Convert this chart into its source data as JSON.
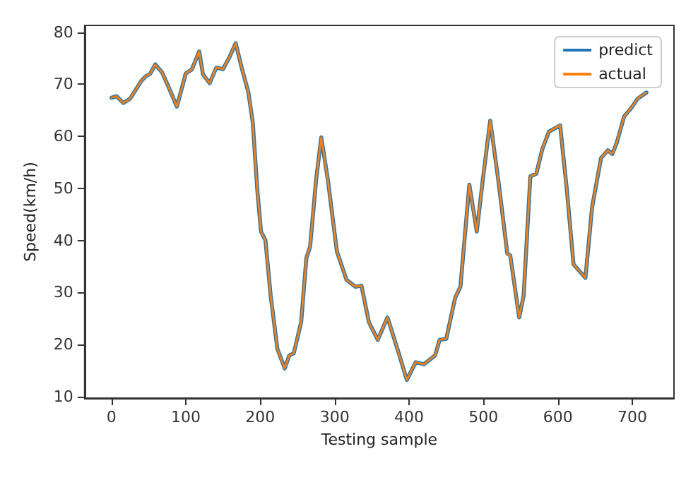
{
  "chart_data": {
    "type": "line",
    "xlabel": "Testing sample",
    "ylabel": "Speed(km/h)",
    "x": [
      0,
      7,
      16,
      25,
      40,
      46,
      52,
      59,
      68,
      77,
      88,
      100,
      108,
      118,
      123,
      132,
      141,
      150,
      159,
      167,
      175,
      184,
      190,
      196,
      201,
      207,
      214,
      223,
      233,
      239,
      245,
      255,
      262,
      267,
      275,
      282,
      291,
      303,
      316,
      328,
      336,
      346,
      358,
      371,
      386,
      397,
      409,
      420,
      435,
      441,
      450,
      462,
      469,
      481,
      491,
      499,
      509,
      520,
      532,
      536,
      548,
      554,
      563,
      571,
      579,
      588,
      603,
      612,
      621,
      637,
      646,
      658,
      667,
      673,
      679,
      689,
      699,
      707,
      719
    ],
    "series": [
      {
        "name": "predict",
        "color": "#1f77b4",
        "values": [
          67.4,
          67.7,
          66.4,
          67.2,
          70.6,
          71.5,
          72,
          73.8,
          72.3,
          69.4,
          65.7,
          72.1,
          72.8,
          76.3,
          71.9,
          70.2,
          73.2,
          72.9,
          75.3,
          77.9,
          73.2,
          68.5,
          62.6,
          49.8,
          41.7,
          40,
          29.4,
          19.2,
          15.4,
          17.9,
          18.3,
          24.3,
          36.6,
          38.8,
          51.5,
          59.8,
          51.5,
          37.9,
          32.4,
          31.1,
          31.3,
          24.3,
          20.9,
          25.2,
          18.4,
          13.2,
          16.6,
          16.2,
          17.9,
          20.9,
          21.1,
          29,
          31.1,
          50.7,
          41.7,
          51.5,
          63,
          51.5,
          37.5,
          37.1,
          25.2,
          29.4,
          52.3,
          52.8,
          57.5,
          60.9,
          62.1,
          49.8,
          35.4,
          32.8,
          46.4,
          55.8,
          57.3,
          56.6,
          58.7,
          63.8,
          65.5,
          67.2,
          68.4
        ]
      },
      {
        "name": "actual",
        "color": "#ff7f0e",
        "values": [
          67.4,
          67.7,
          66.4,
          67.2,
          70.6,
          71.5,
          72,
          73.8,
          72.3,
          69.4,
          65.7,
          72.1,
          72.8,
          76.3,
          71.9,
          70.2,
          73.2,
          72.9,
          75.3,
          77.9,
          73.2,
          68.5,
          62.6,
          49.8,
          41.7,
          40,
          29.4,
          19.2,
          15.4,
          17.9,
          18.3,
          24.3,
          36.6,
          38.8,
          51.5,
          59.8,
          51.5,
          37.9,
          32.4,
          31.1,
          31.3,
          24.3,
          20.9,
          25.2,
          18.4,
          13.2,
          16.6,
          16.2,
          17.9,
          20.9,
          21.1,
          29,
          31.1,
          50.7,
          41.7,
          51.5,
          63,
          51.5,
          37.5,
          37.1,
          25.2,
          29.4,
          52.3,
          52.8,
          57.5,
          60.9,
          62.1,
          49.8,
          35.4,
          32.8,
          46.4,
          55.8,
          57.3,
          56.6,
          58.7,
          63.8,
          65.5,
          67.2,
          68.4
        ]
      }
    ],
    "xlim": [
      -36,
      756
    ],
    "ylim": [
      9.7,
      81.3
    ],
    "xticks": [
      0,
      100,
      200,
      300,
      400,
      500,
      600,
      700
    ],
    "yticks": [
      10,
      20,
      30,
      40,
      50,
      60,
      70,
      80
    ],
    "grid": false,
    "legend": "top right",
    "marker": "none",
    "line_style": "solid"
  }
}
